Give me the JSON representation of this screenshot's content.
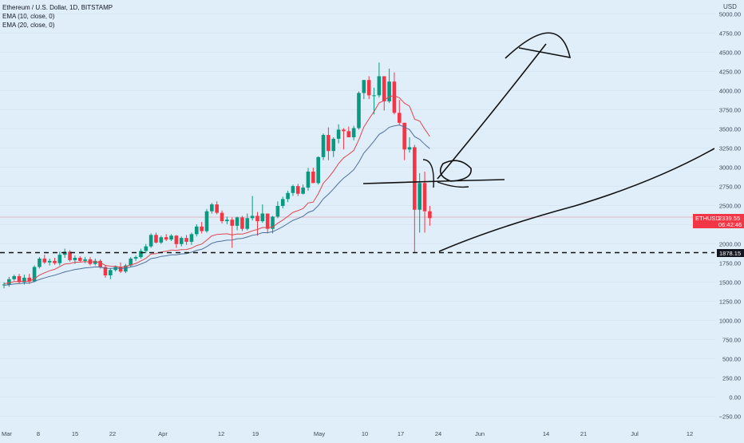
{
  "legend": {
    "title": "Ethereum / U.S. Dollar, 1D, BITSTAMP",
    "ema10": "EMA (10, close, 0)",
    "ema20": "EMA (20, close, 0)"
  },
  "price_axis": {
    "currency": "USD",
    "ticks": [
      "5000.00",
      "4750.00",
      "4500.00",
      "4250.00",
      "4000.00",
      "3750.00",
      "3500.00",
      "3250.00",
      "3000.00",
      "2750.00",
      "2500.00",
      "2250.00",
      "2000.00",
      "1750.00",
      "1500.00",
      "1250.00",
      "1000.00",
      "750.00",
      "500.00",
      "250.00",
      "0.00",
      "−250.00"
    ]
  },
  "time_axis": {
    "ticks": [
      "Mar",
      "8",
      "15",
      "22",
      "Apr",
      "12",
      "19",
      "May",
      "10",
      "17",
      "24",
      "Jun",
      "14",
      "21",
      "Jul",
      "12"
    ]
  },
  "price_badge": {
    "symbol": "ETHUSD",
    "price": "2339.55",
    "countdown": "06:42:46",
    "color": "#f23645"
  },
  "support_badge": {
    "value": "1878.15"
  },
  "colors": {
    "up": "#089981",
    "down": "#f23645",
    "ema10": "#e0454f",
    "ema20": "#4f6f9a",
    "background": "#e0eef9"
  },
  "chart_data": {
    "type": "candlestick",
    "symbol": "ETHUSD",
    "interval": "1D",
    "exchange": "BITSTAMP",
    "ylim": [
      -300,
      5100
    ],
    "last_price": 2339.55,
    "support_level": 1878.15,
    "candles": [
      {
        "o": 1460,
        "h": 1500,
        "l": 1420,
        "c": 1470
      },
      {
        "o": 1470,
        "h": 1570,
        "l": 1440,
        "c": 1540
      },
      {
        "o": 1540,
        "h": 1600,
        "l": 1520,
        "c": 1580
      },
      {
        "o": 1580,
        "h": 1610,
        "l": 1480,
        "c": 1500
      },
      {
        "o": 1500,
        "h": 1600,
        "l": 1470,
        "c": 1560
      },
      {
        "o": 1560,
        "h": 1610,
        "l": 1480,
        "c": 1510
      },
      {
        "o": 1510,
        "h": 1720,
        "l": 1500,
        "c": 1700
      },
      {
        "o": 1700,
        "h": 1830,
        "l": 1680,
        "c": 1810
      },
      {
        "o": 1810,
        "h": 1860,
        "l": 1740,
        "c": 1760
      },
      {
        "o": 1760,
        "h": 1810,
        "l": 1720,
        "c": 1780
      },
      {
        "o": 1780,
        "h": 1820,
        "l": 1730,
        "c": 1750
      },
      {
        "o": 1750,
        "h": 1900,
        "l": 1720,
        "c": 1860
      },
      {
        "o": 1860,
        "h": 1940,
        "l": 1820,
        "c": 1900
      },
      {
        "o": 1900,
        "h": 1920,
        "l": 1770,
        "c": 1790
      },
      {
        "o": 1790,
        "h": 1850,
        "l": 1740,
        "c": 1820
      },
      {
        "o": 1820,
        "h": 1840,
        "l": 1760,
        "c": 1780
      },
      {
        "o": 1780,
        "h": 1830,
        "l": 1750,
        "c": 1800
      },
      {
        "o": 1800,
        "h": 1830,
        "l": 1720,
        "c": 1740
      },
      {
        "o": 1740,
        "h": 1810,
        "l": 1720,
        "c": 1780
      },
      {
        "o": 1780,
        "h": 1800,
        "l": 1680,
        "c": 1700
      },
      {
        "o": 1700,
        "h": 1720,
        "l": 1560,
        "c": 1590
      },
      {
        "o": 1590,
        "h": 1680,
        "l": 1540,
        "c": 1660
      },
      {
        "o": 1660,
        "h": 1720,
        "l": 1640,
        "c": 1700
      },
      {
        "o": 1700,
        "h": 1760,
        "l": 1620,
        "c": 1640
      },
      {
        "o": 1640,
        "h": 1740,
        "l": 1620,
        "c": 1720
      },
      {
        "o": 1720,
        "h": 1830,
        "l": 1700,
        "c": 1810
      },
      {
        "o": 1810,
        "h": 1850,
        "l": 1780,
        "c": 1830
      },
      {
        "o": 1830,
        "h": 1940,
        "l": 1810,
        "c": 1910
      },
      {
        "o": 1910,
        "h": 2000,
        "l": 1880,
        "c": 1970
      },
      {
        "o": 1970,
        "h": 2140,
        "l": 1950,
        "c": 2120
      },
      {
        "o": 2120,
        "h": 2150,
        "l": 2010,
        "c": 2020
      },
      {
        "o": 2020,
        "h": 2110,
        "l": 2000,
        "c": 2090
      },
      {
        "o": 2090,
        "h": 2130,
        "l": 2040,
        "c": 2060
      },
      {
        "o": 2060,
        "h": 2130,
        "l": 2040,
        "c": 2110
      },
      {
        "o": 2110,
        "h": 2120,
        "l": 1950,
        "c": 2000
      },
      {
        "o": 2000,
        "h": 2100,
        "l": 1970,
        "c": 2080
      },
      {
        "o": 2080,
        "h": 2120,
        "l": 1990,
        "c": 2030
      },
      {
        "o": 2030,
        "h": 2150,
        "l": 1990,
        "c": 2130
      },
      {
        "o": 2130,
        "h": 2260,
        "l": 2100,
        "c": 2230
      },
      {
        "o": 2230,
        "h": 2290,
        "l": 2140,
        "c": 2170
      },
      {
        "o": 2170,
        "h": 2460,
        "l": 2150,
        "c": 2430
      },
      {
        "o": 2430,
        "h": 2540,
        "l": 2400,
        "c": 2520
      },
      {
        "o": 2520,
        "h": 2560,
        "l": 2390,
        "c": 2410
      },
      {
        "o": 2410,
        "h": 2440,
        "l": 2270,
        "c": 2300
      },
      {
        "o": 2300,
        "h": 2360,
        "l": 2260,
        "c": 2320
      },
      {
        "o": 2320,
        "h": 2350,
        "l": 1950,
        "c": 2240
      },
      {
        "o": 2240,
        "h": 2360,
        "l": 2180,
        "c": 2350
      },
      {
        "o": 2350,
        "h": 2370,
        "l": 2170,
        "c": 2200
      },
      {
        "o": 2200,
        "h": 2400,
        "l": 2180,
        "c": 2340
      },
      {
        "o": 2340,
        "h": 2630,
        "l": 2310,
        "c": 2370
      },
      {
        "o": 2370,
        "h": 2420,
        "l": 2110,
        "c": 2300
      },
      {
        "o": 2300,
        "h": 2520,
        "l": 2280,
        "c": 2400
      },
      {
        "o": 2400,
        "h": 2360,
        "l": 2140,
        "c": 2200
      },
      {
        "o": 2200,
        "h": 2370,
        "l": 2140,
        "c": 2360
      },
      {
        "o": 2360,
        "h": 2560,
        "l": 2340,
        "c": 2500
      },
      {
        "o": 2500,
        "h": 2620,
        "l": 2470,
        "c": 2590
      },
      {
        "o": 2590,
        "h": 2700,
        "l": 2550,
        "c": 2670
      },
      {
        "o": 2670,
        "h": 2780,
        "l": 2630,
        "c": 2760
      },
      {
        "o": 2760,
        "h": 2790,
        "l": 2630,
        "c": 2660
      },
      {
        "o": 2660,
        "h": 2780,
        "l": 2650,
        "c": 2740
      },
      {
        "o": 2740,
        "h": 3000,
        "l": 2700,
        "c": 2950
      },
      {
        "o": 2950,
        "h": 3000,
        "l": 2800,
        "c": 2800
      },
      {
        "o": 2800,
        "h": 3150,
        "l": 2780,
        "c": 3140
      },
      {
        "o": 3140,
        "h": 3450,
        "l": 3100,
        "c": 3430
      },
      {
        "o": 3430,
        "h": 3530,
        "l": 3100,
        "c": 3220
      },
      {
        "o": 3220,
        "h": 3400,
        "l": 3140,
        "c": 3380
      },
      {
        "o": 3380,
        "h": 3570,
        "l": 3320,
        "c": 3500
      },
      {
        "o": 3500,
        "h": 3520,
        "l": 3240,
        "c": 3480
      },
      {
        "o": 3480,
        "h": 3540,
        "l": 3400,
        "c": 3400
      },
      {
        "o": 3400,
        "h": 3550,
        "l": 3360,
        "c": 3520
      },
      {
        "o": 3520,
        "h": 4000,
        "l": 3500,
        "c": 3980
      },
      {
        "o": 3980,
        "h": 4150,
        "l": 3900,
        "c": 4150
      },
      {
        "o": 4150,
        "h": 4200,
        "l": 3900,
        "c": 3950
      },
      {
        "o": 3950,
        "h": 4050,
        "l": 3700,
        "c": 3950
      },
      {
        "o": 3950,
        "h": 4380,
        "l": 3920,
        "c": 4200
      },
      {
        "o": 4200,
        "h": 4200,
        "l": 3750,
        "c": 3870
      },
      {
        "o": 3870,
        "h": 4300,
        "l": 3850,
        "c": 4130
      },
      {
        "o": 4130,
        "h": 4250,
        "l": 3700,
        "c": 3720
      },
      {
        "o": 3720,
        "h": 3890,
        "l": 3560,
        "c": 3590
      },
      {
        "o": 3590,
        "h": 3590,
        "l": 3100,
        "c": 3240
      },
      {
        "o": 3240,
        "h": 3400,
        "l": 3200,
        "c": 3270
      },
      {
        "o": 3270,
        "h": 3300,
        "l": 1890,
        "c": 2450
      },
      {
        "o": 2450,
        "h": 2930,
        "l": 2150,
        "c": 2800
      },
      {
        "o": 2800,
        "h": 2950,
        "l": 2150,
        "c": 2430
      },
      {
        "o": 2430,
        "h": 2500,
        "l": 2240,
        "c": 2340
      }
    ],
    "ema10": [
      1480,
      1492,
      1508,
      1507,
      1514,
      1512,
      1546,
      1593,
      1623,
      1651,
      1669,
      1704,
      1740,
      1746,
      1761,
      1764,
      1771,
      1765,
      1769,
      1757,
      1721,
      1710,
      1709,
      1697,
      1704,
      1727,
      1746,
      1779,
      1814,
      1870,
      1876,
      1896,
      1906,
      1923,
      1918,
      1927,
      1929,
      1947,
      1980,
      2000,
      2051,
      2108,
      2127,
      2131,
      2135,
      2119,
      2133,
      2131,
      2150,
      2174,
      2191,
      2218,
      2214,
      2223,
      2273,
      2315,
      2364,
      2415,
      2438,
      2465,
      2539,
      2550,
      2660,
      2798,
      2870,
      2956,
      3055,
      3130,
      3176,
      3227,
      3366,
      3535,
      3640,
      3736,
      3850,
      3882,
      3934,
      3943,
      3917,
      3847,
      3808,
      3637,
      3613,
      3507,
      3410
    ],
    "ema20": [
      1460,
      1467,
      1478,
      1481,
      1487,
      1488,
      1509,
      1537,
      1557,
      1576,
      1592,
      1613,
      1636,
      1651,
      1667,
      1677,
      1688,
      1693,
      1701,
      1699,
      1683,
      1681,
      1685,
      1680,
      1684,
      1700,
      1714,
      1739,
      1766,
      1810,
      1820,
      1839,
      1846,
      1860,
      1860,
      1871,
      1876,
      1893,
      1918,
      1931,
      1968,
      2010,
      2030,
      2040,
      2051,
      2053,
      2070,
      2074,
      2093,
      2115,
      2127,
      2150,
      2150,
      2162,
      2194,
      2228,
      2270,
      2311,
      2336,
      2364,
      2415,
      2438,
      2504,
      2593,
      2653,
      2723,
      2798,
      2864,
      2915,
      2974,
      3074,
      3192,
      3270,
      3349,
      3437,
      3477,
      3531,
      3548,
      3561,
      3534,
      3500,
      3408,
      3373,
      3308,
      3250
    ]
  }
}
